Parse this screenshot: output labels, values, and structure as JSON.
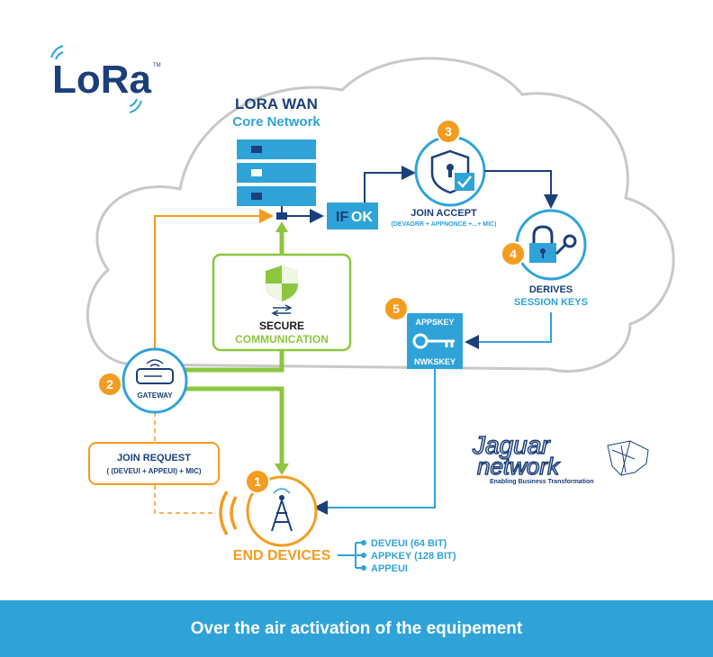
{
  "logo": {
    "text": "LoRa",
    "tm": "TM"
  },
  "core": {
    "title": "LORA WAN",
    "subtitle": "Core Network"
  },
  "if_ok": {
    "if": "IF",
    "ok": "OK"
  },
  "steps": {
    "s1": "1",
    "s2": "2",
    "s3": "3",
    "s4": "4",
    "s5": "5"
  },
  "join_accept": {
    "title": "JOIN ACCEPT",
    "detail": "(DEVADRR + APPNONCE +...+ MIC)"
  },
  "derives": {
    "line1": "DERIVES",
    "line2": "SESSION KEYS"
  },
  "keys": {
    "appskey": "APPSKEY",
    "nwkskey": "NWKSKEY"
  },
  "secure": {
    "line1": "SECURE",
    "line2": "COMMUNICATION"
  },
  "gateway": {
    "label": "GATEWAY"
  },
  "join_request": {
    "title": "JOIN REQUEST",
    "detail": "( (DEVEUI + APPEUI) + MIC)"
  },
  "end_devices": {
    "label": "END DEVICES"
  },
  "device_params": [
    "DEVEUI (64 BIT)",
    "APPKEY (128 BIT)",
    "APPEUI"
  ],
  "jaguar": {
    "line1": "Jaguar",
    "line2": "network",
    "tagline": "Enabling Business Transformation"
  },
  "footer": {
    "text": "Over the air activation of the equipement"
  },
  "colors": {
    "navy": "#1b3f7a",
    "blue": "#2fa3d8",
    "orange": "#f39c1f",
    "green": "#8cc63f",
    "cloud": "#c8c8c8"
  }
}
